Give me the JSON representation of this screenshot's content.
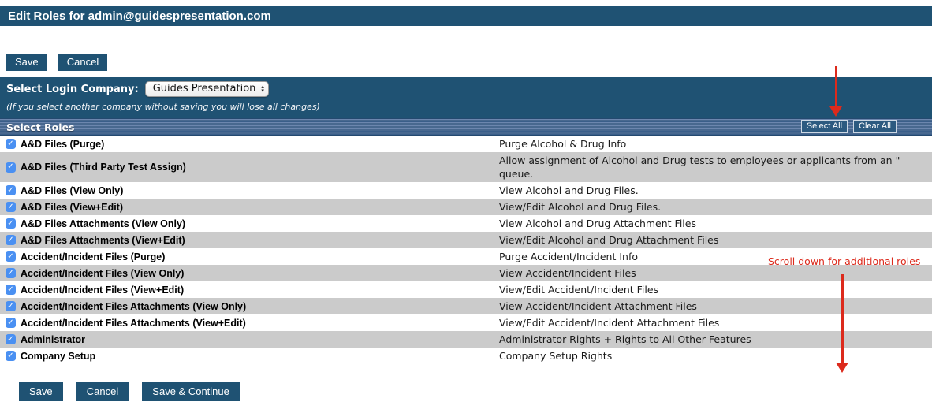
{
  "page_title": "Edit Roles for admin@guidespresentation.com",
  "toolbar_top": {
    "save_label": "Save",
    "cancel_label": "Cancel"
  },
  "company_section": {
    "label": "Select Login Company:",
    "selected_company": "Guides Presentation",
    "warning_note": "(If you select another company without saving you will lose all changes)"
  },
  "roles_header": {
    "title": "Select Roles",
    "select_all_label": "Select All",
    "clear_all_label": "Clear All"
  },
  "roles": [
    {
      "name": "A&D Files (Purge)",
      "description": "Purge Alcohol & Drug Info",
      "checked": true
    },
    {
      "name": "A&D Files (Third Party Test Assign)",
      "description": "Allow assignment of Alcohol and Drug tests to employees or applicants from an \"\nqueue.",
      "checked": true
    },
    {
      "name": "A&D Files (View Only)",
      "description": "View Alcohol and Drug Files.",
      "checked": true
    },
    {
      "name": "A&D Files (View+Edit)",
      "description": "View/Edit Alcohol and Drug Files.",
      "checked": true
    },
    {
      "name": "A&D Files Attachments (View Only)",
      "description": "View Alcohol and Drug Attachment Files",
      "checked": true
    },
    {
      "name": "A&D Files Attachments (View+Edit)",
      "description": "View/Edit Alcohol and Drug Attachment Files",
      "checked": true
    },
    {
      "name": "Accident/Incident Files (Purge)",
      "description": "Purge Accident/Incident Info",
      "checked": true
    },
    {
      "name": "Accident/Incident Files (View Only)",
      "description": "View Accident/Incident Files",
      "checked": true
    },
    {
      "name": "Accident/Incident Files (View+Edit)",
      "description": "View/Edit Accident/Incident Files",
      "checked": true
    },
    {
      "name": "Accident/Incident Files Attachments (View Only)",
      "description": "View Accident/Incident Attachment Files",
      "checked": true
    },
    {
      "name": "Accident/Incident Files Attachments (View+Edit)",
      "description": "View/Edit Accident/Incident Attachment Files",
      "checked": true
    },
    {
      "name": "Administrator",
      "description": "Administrator Rights + Rights to All Other Features",
      "checked": true
    },
    {
      "name": "Company Setup",
      "description": "Company Setup Rights",
      "checked": true
    }
  ],
  "toolbar_bottom": {
    "save_label": "Save",
    "cancel_label": "Cancel",
    "save_continue_label": "Save & Continue"
  },
  "annotations": {
    "scroll_note": "Scroll down for additional roles"
  },
  "colors": {
    "header_blue": "#1f5273",
    "stripe_light": "#6c86ae",
    "stripe_dark": "#3a5e89",
    "row_alt_gray": "#cbcbcb",
    "checkbox_blue": "#4a90f2",
    "annotation_red": "#dc2a1c"
  }
}
